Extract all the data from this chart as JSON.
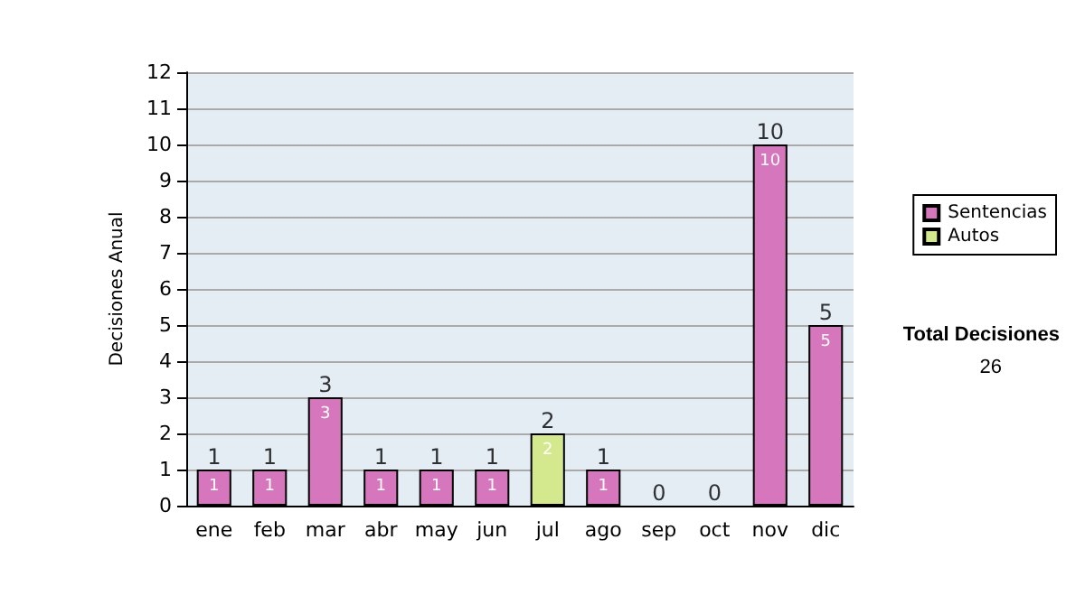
{
  "chart_data": {
    "type": "bar",
    "stacked": true,
    "ylabel": "Decisiones Anual",
    "categories": [
      "ene",
      "feb",
      "mar",
      "abr",
      "may",
      "jun",
      "jul",
      "ago",
      "sep",
      "oct",
      "nov",
      "dic"
    ],
    "series": [
      {
        "name": "Sentencias",
        "color": "#d676bc",
        "values": [
          1,
          1,
          3,
          1,
          1,
          1,
          0,
          1,
          0,
          0,
          10,
          5
        ],
        "value_labels": [
          "1",
          "1",
          "3",
          "1",
          "1",
          "1",
          null,
          "1",
          null,
          null,
          "10",
          "5"
        ]
      },
      {
        "name": "Autos",
        "color": "#d4e88e",
        "values": [
          0,
          0,
          0,
          0,
          0,
          0,
          2,
          0,
          0,
          0,
          0,
          0
        ],
        "value_labels": [
          null,
          null,
          null,
          null,
          null,
          null,
          "2",
          null,
          null,
          null,
          null,
          null
        ]
      }
    ],
    "totals": [
      "1",
      "1",
      "3",
      "1",
      "1",
      "1",
      "2",
      "1",
      "0",
      "0",
      "10",
      "5"
    ],
    "ylim": [
      0,
      12
    ],
    "yticks": [
      0,
      1,
      2,
      3,
      4,
      5,
      6,
      7,
      8,
      9,
      10,
      11,
      12
    ],
    "grid": "y",
    "legend": "right",
    "annotations": [
      "Total Decisiones",
      "26"
    ]
  }
}
